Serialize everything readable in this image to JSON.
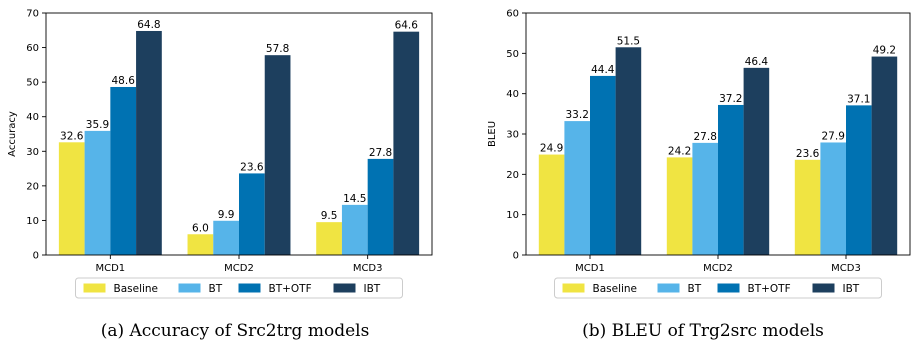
{
  "charts": [
    {
      "caption": "(a) Accuracy of Src2trg models",
      "chart_data": {
        "type": "bar",
        "categories": [
          "MCD1",
          "MCD2",
          "MCD3"
        ],
        "series": [
          {
            "name": "Baseline",
            "color": "#f0e442",
            "values": [
              32.6,
              6.0,
              9.5
            ]
          },
          {
            "name": "BT",
            "color": "#56b4e9",
            "values": [
              35.9,
              9.9,
              14.5
            ]
          },
          {
            "name": "BT+OTF",
            "color": "#0072b2",
            "values": [
              48.6,
              23.6,
              27.8
            ]
          },
          {
            "name": "IBT",
            "color": "#1d3f5e",
            "values": [
              64.8,
              57.8,
              64.6
            ]
          }
        ],
        "value_labels": [
          [
            "32.6",
            "6.0",
            "9.5"
          ],
          [
            "35.9",
            "9.9",
            "14.5"
          ],
          [
            "48.6",
            "23.6",
            "27.8"
          ],
          [
            "64.8",
            "57.8",
            "64.6"
          ]
        ],
        "xlabel": "",
        "ylabel": "Accuracy",
        "ylim": [
          0,
          70
        ],
        "yticks": [
          0,
          10,
          20,
          30,
          40,
          50,
          60,
          70
        ],
        "ytick_labels": [
          "0",
          "10",
          "20",
          "30",
          "40",
          "50",
          "60",
          "70"
        ],
        "grid": false,
        "legend_position": "bottom"
      }
    },
    {
      "caption": "(b) BLEU of Trg2src models",
      "chart_data": {
        "type": "bar",
        "categories": [
          "MCD1",
          "MCD2",
          "MCD3"
        ],
        "series": [
          {
            "name": "Baseline",
            "color": "#f0e442",
            "values": [
              24.9,
              24.2,
              23.6
            ]
          },
          {
            "name": "BT",
            "color": "#56b4e9",
            "values": [
              33.2,
              27.8,
              27.9
            ]
          },
          {
            "name": "BT+OTF",
            "color": "#0072b2",
            "values": [
              44.4,
              37.2,
              37.1
            ]
          },
          {
            "name": "IBT",
            "color": "#1d3f5e",
            "values": [
              51.5,
              46.4,
              49.2
            ]
          }
        ],
        "value_labels": [
          [
            "24.9",
            "24.2",
            "23.6"
          ],
          [
            "33.2",
            "27.8",
            "27.9"
          ],
          [
            "44.4",
            "37.2",
            "37.1"
          ],
          [
            "51.5",
            "46.4",
            "49.2"
          ]
        ],
        "xlabel": "",
        "ylabel": "BLEU",
        "ylim": [
          0,
          60
        ],
        "yticks": [
          0,
          10,
          20,
          30,
          40,
          50,
          60
        ],
        "ytick_labels": [
          "0",
          "10",
          "20",
          "30",
          "40",
          "50",
          "60"
        ],
        "grid": false,
        "legend_position": "bottom"
      }
    }
  ]
}
